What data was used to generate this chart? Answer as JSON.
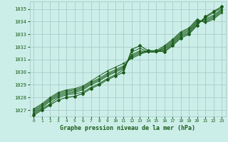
{
  "title": "Graphe pression niveau de la mer (hPa)",
  "bg_color": "#cceee8",
  "grid_color": "#aacccc",
  "line_color": "#1a5c1a",
  "xlim": [
    -0.5,
    23.5
  ],
  "ylim": [
    1026.5,
    1035.6
  ],
  "yticks": [
    1027,
    1028,
    1029,
    1030,
    1031,
    1032,
    1033,
    1034,
    1035
  ],
  "xticks": [
    0,
    1,
    2,
    3,
    4,
    5,
    6,
    7,
    8,
    9,
    10,
    11,
    12,
    13,
    14,
    15,
    16,
    17,
    18,
    19,
    20,
    21,
    22,
    23
  ],
  "series": [
    [
      1026.7,
      1027.1,
      1027.5,
      1028.0,
      1028.2,
      1028.3,
      1028.4,
      1028.8,
      1029.1,
      1029.5,
      1029.8,
      1030.2,
      1031.6,
      1031.9,
      1031.6,
      1031.6,
      1031.7,
      1032.2,
      1032.8,
      1033.1,
      1033.8,
      1034.3,
      1034.7,
      1035.1
    ],
    [
      1026.8,
      1027.2,
      1027.7,
      1028.1,
      1028.3,
      1028.4,
      1028.6,
      1029.0,
      1029.3,
      1029.7,
      1030.0,
      1030.3,
      1031.4,
      1031.7,
      1031.6,
      1031.6,
      1031.8,
      1032.3,
      1032.9,
      1033.2,
      1033.9,
      1034.2,
      1034.5,
      1035.0
    ],
    [
      1026.9,
      1027.3,
      1027.8,
      1028.2,
      1028.4,
      1028.5,
      1028.7,
      1029.1,
      1029.4,
      1029.8,
      1030.1,
      1030.4,
      1031.3,
      1031.6,
      1031.6,
      1031.6,
      1031.9,
      1032.4,
      1033.0,
      1033.3,
      1034.0,
      1034.1,
      1034.4,
      1034.9
    ],
    [
      1027.0,
      1027.4,
      1027.9,
      1028.3,
      1028.5,
      1028.6,
      1028.8,
      1029.2,
      1029.5,
      1029.9,
      1030.2,
      1030.5,
      1031.2,
      1031.5,
      1031.6,
      1031.6,
      1032.0,
      1032.5,
      1033.1,
      1033.4,
      1034.1,
      1034.0,
      1034.3,
      1034.8
    ],
    [
      1027.1,
      1027.5,
      1028.0,
      1028.4,
      1028.6,
      1028.7,
      1028.9,
      1029.3,
      1029.7,
      1030.1,
      1030.4,
      1030.7,
      1031.1,
      1031.4,
      1031.7,
      1031.7,
      1032.1,
      1032.6,
      1033.2,
      1033.5,
      1034.2,
      1033.9,
      1034.2,
      1034.7
    ]
  ],
  "top_series": [
    1026.6,
    1027.0,
    1027.4,
    1027.8,
    1028.0,
    1028.1,
    1028.3,
    1028.7,
    1029.0,
    1029.4,
    1029.7,
    1030.0,
    1031.8,
    1032.1,
    1031.7,
    1031.7,
    1031.6,
    1032.1,
    1032.7,
    1033.0,
    1033.7,
    1034.4,
    1034.8,
    1035.2
  ]
}
